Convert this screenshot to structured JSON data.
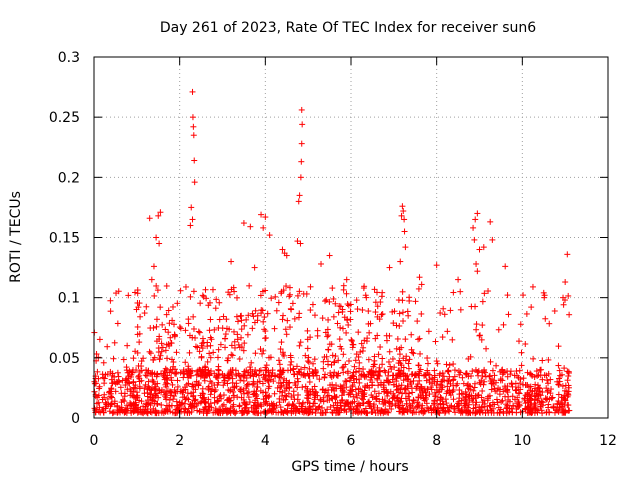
{
  "chart_data": {
    "type": "scatter",
    "title": "Day 261 of 2023, Rate Of TEC Index for receiver sun6",
    "xlabel": "GPS time / hours",
    "ylabel": "ROTI / TECUs",
    "xlim": [
      0,
      12
    ],
    "ylim": [
      0,
      0.3
    ],
    "xticks": [
      0,
      2,
      4,
      6,
      8,
      10,
      12
    ],
    "xtick_labels": [
      "0",
      "2",
      "4",
      "6",
      "8",
      "10",
      "12"
    ],
    "yticks": [
      0,
      0.05,
      0.1,
      0.15,
      0.2,
      0.25,
      0.3
    ],
    "ytick_labels": [
      "0",
      "0.05",
      "0.1",
      "0.15",
      "0.2",
      "0.25",
      "0.3"
    ],
    "grid": true,
    "marker": "plus",
    "color": "#ff0000",
    "data_extent_hours": [
      0,
      11.1
    ],
    "series": [
      {
        "name": "sun6",
        "description": "dense band of ROTI values mostly 0.005-0.04 TECU/min across 0-11.1 h, with scattered spikes",
        "points": [
          [
            2.3,
            0.271
          ],
          [
            2.31,
            0.25
          ],
          [
            2.32,
            0.242
          ],
          [
            2.33,
            0.235
          ],
          [
            2.34,
            0.214
          ],
          [
            2.35,
            0.196
          ],
          [
            2.27,
            0.175
          ],
          [
            2.3,
            0.165
          ],
          [
            2.25,
            0.16
          ],
          [
            4.85,
            0.256
          ],
          [
            4.86,
            0.244
          ],
          [
            4.85,
            0.228
          ],
          [
            4.84,
            0.213
          ],
          [
            4.83,
            0.2
          ],
          [
            4.8,
            0.185
          ],
          [
            4.78,
            0.18
          ],
          [
            4.75,
            0.147
          ],
          [
            4.82,
            0.145
          ],
          [
            7.2,
            0.176
          ],
          [
            7.22,
            0.172
          ],
          [
            7.18,
            0.168
          ],
          [
            7.24,
            0.165
          ],
          [
            7.25,
            0.155
          ],
          [
            7.27,
            0.142
          ],
          [
            7.15,
            0.13
          ],
          [
            8.95,
            0.17
          ],
          [
            8.9,
            0.165
          ],
          [
            8.85,
            0.158
          ],
          [
            8.88,
            0.148
          ],
          [
            9.0,
            0.14
          ],
          [
            8.92,
            0.128
          ],
          [
            8.95,
            0.122
          ],
          [
            9.25,
            0.163
          ],
          [
            9.3,
            0.148
          ],
          [
            9.1,
            0.142
          ],
          [
            1.55,
            0.171
          ],
          [
            1.5,
            0.168
          ],
          [
            1.3,
            0.166
          ],
          [
            1.45,
            0.15
          ],
          [
            1.52,
            0.145
          ],
          [
            1.4,
            0.126
          ],
          [
            1.35,
            0.115
          ],
          [
            3.9,
            0.169
          ],
          [
            4.0,
            0.167
          ],
          [
            3.95,
            0.158
          ],
          [
            3.5,
            0.162
          ],
          [
            3.65,
            0.159
          ],
          [
            4.1,
            0.152
          ],
          [
            4.4,
            0.14
          ],
          [
            4.45,
            0.137
          ],
          [
            4.5,
            0.135
          ],
          [
            3.75,
            0.125
          ],
          [
            3.2,
            0.13
          ],
          [
            8.0,
            0.127
          ],
          [
            9.6,
            0.126
          ],
          [
            11.05,
            0.136
          ],
          [
            10.5,
            0.104
          ],
          [
            10.52,
            0.102
          ],
          [
            10.95,
            0.1
          ],
          [
            11.0,
            0.113
          ],
          [
            5.5,
            0.135
          ],
          [
            5.3,
            0.128
          ],
          [
            5.9,
            0.115
          ],
          [
            6.3,
            0.108
          ],
          [
            6.9,
            0.125
          ],
          [
            7.6,
            0.117
          ],
          [
            7.65,
            0.111
          ],
          [
            8.5,
            0.115
          ],
          [
            8.55,
            0.105
          ]
        ]
      }
    ]
  }
}
